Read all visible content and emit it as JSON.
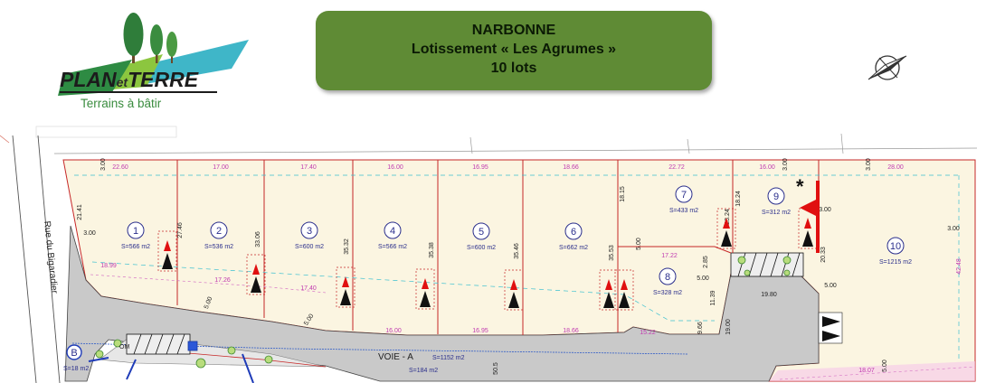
{
  "header": {
    "logo": {
      "brand_plan": "PLAN",
      "brand_et": "et",
      "brand_terre": "TERRE",
      "tagline": "Terrains à bâtir"
    },
    "title": {
      "line1": "NARBONNE",
      "line2": "Lotissement « Les Agrumes »",
      "line3": "10 lots"
    },
    "compass_icon": "north-arrow-icon"
  },
  "plan": {
    "street": "Rue du Bigaradier",
    "road": {
      "name": "VOIE - A",
      "area": "S=1152 m2",
      "lower_area": "S=184 m2"
    },
    "marker_b": {
      "letter": "B",
      "area": "S=18 m2"
    },
    "om_label": "OM",
    "asterisk": "*",
    "lots": [
      {
        "num": "1",
        "area": "S=566 m2"
      },
      {
        "num": "2",
        "area": "S=536 m2"
      },
      {
        "num": "3",
        "area": "S=600 m2"
      },
      {
        "num": "4",
        "area": "S=566 m2"
      },
      {
        "num": "5",
        "area": "S=600 m2"
      },
      {
        "num": "6",
        "area": "S=662 m2"
      },
      {
        "num": "7",
        "area": "S=433 m2"
      },
      {
        "num": "8",
        "area": "S=328 m2"
      },
      {
        "num": "9",
        "area": "S=312 m2"
      },
      {
        "num": "10",
        "area": "S=1215 m2"
      }
    ],
    "top_dims": [
      "22.60",
      "17.00",
      "17.40",
      "16.00",
      "16.95",
      "18.66",
      "22.72",
      "16.00",
      "28.00"
    ],
    "bottom_dims": [
      "18.99",
      "17.26",
      "17.40",
      "16.00",
      "16.95",
      "18.66",
      "15.22",
      "17.22",
      "19.80"
    ],
    "side_dims": [
      "21.41",
      "27.46",
      "33.06",
      "35.32",
      "35.38",
      "35.46",
      "35.53",
      "18.15",
      "23.24",
      "18.24",
      "20.33",
      "42.48",
      "2.85",
      "11.39",
      "19.00",
      "9.66"
    ],
    "setbacks": [
      "3.00",
      "3.00",
      "3.00",
      "3.00",
      "3.00",
      "3.00",
      "5.00",
      "5.00",
      "5.00",
      "5.00",
      "5.00",
      "5.00",
      "50.5",
      "18.07"
    ]
  }
}
